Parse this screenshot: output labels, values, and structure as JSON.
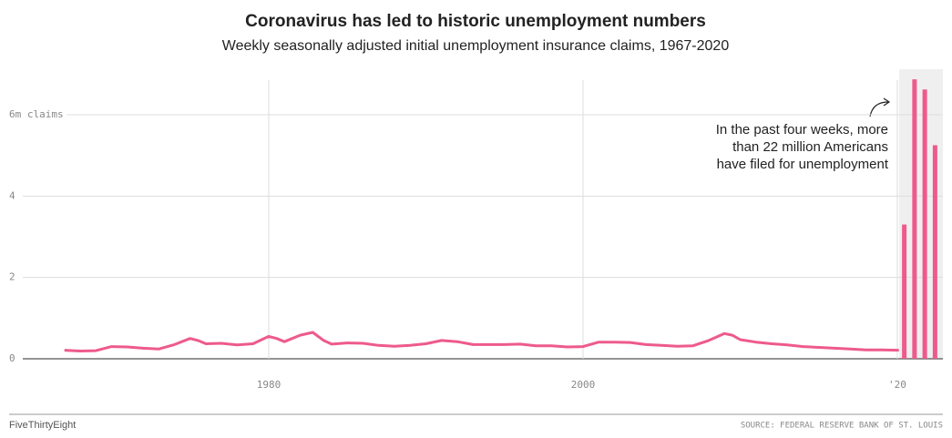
{
  "chart_data": [
    {
      "type": "line",
      "title": "Coronavirus has led to historic unemployment numbers",
      "subtitle": "Weekly seasonally adjusted initial unemployment insurance claims, 1967-2020",
      "x": [
        1967,
        1968,
        1969,
        1970,
        1971,
        1972,
        1973,
        1974,
        1975,
        1975.5,
        1976,
        1977,
        1978,
        1979,
        1980,
        1980.5,
        1981,
        1982,
        1982.8,
        1983.5,
        1984,
        1985,
        1986,
        1987,
        1988,
        1989,
        1990,
        1991,
        1992,
        1993,
        1994,
        1995,
        1996,
        1997,
        1998,
        1999,
        2000,
        2001,
        2002,
        2003,
        2004,
        2005,
        2006,
        2007,
        2008,
        2009,
        2009.5,
        2010,
        2011,
        2012,
        2013,
        2014,
        2015,
        2016,
        2017,
        2018,
        2019,
        2020.1
      ],
      "values": [
        0.21,
        0.19,
        0.2,
        0.3,
        0.29,
        0.26,
        0.24,
        0.35,
        0.5,
        0.45,
        0.37,
        0.38,
        0.34,
        0.37,
        0.55,
        0.5,
        0.42,
        0.58,
        0.65,
        0.45,
        0.36,
        0.39,
        0.38,
        0.33,
        0.31,
        0.33,
        0.37,
        0.45,
        0.42,
        0.35,
        0.35,
        0.35,
        0.36,
        0.32,
        0.32,
        0.29,
        0.3,
        0.41,
        0.41,
        0.4,
        0.35,
        0.33,
        0.31,
        0.32,
        0.45,
        0.62,
        0.58,
        0.47,
        0.41,
        0.37,
        0.34,
        0.3,
        0.28,
        0.26,
        0.24,
        0.22,
        0.22,
        0.21
      ],
      "color": "#ee5a8c",
      "xlim": [
        1964.35,
        2022.9
      ],
      "xticks": [
        1980,
        2000,
        {
          "value": 2020,
          "label": "'20"
        }
      ],
      "ylim": [
        0,
        6.85
      ],
      "yticks": [
        0,
        2,
        4,
        {
          "value": 6,
          "label": "6m claims"
        }
      ],
      "grid": true
    },
    {
      "type": "bar",
      "categories": [
        null,
        null,
        null,
        null
      ],
      "values": [
        3.3,
        6.87,
        6.62,
        5.25
      ],
      "color": "#ee5a8c",
      "ylim": [
        0,
        6.85
      ],
      "annotation": [
        "In the past four weeks, more",
        "than 22 million Americans",
        "have filed for unemployment"
      ]
    }
  ],
  "footer": {
    "brand": "FiveThirtyEight",
    "source": "SOURCE: FEDERAL RESERVE BANK OF ST. LOUIS"
  }
}
